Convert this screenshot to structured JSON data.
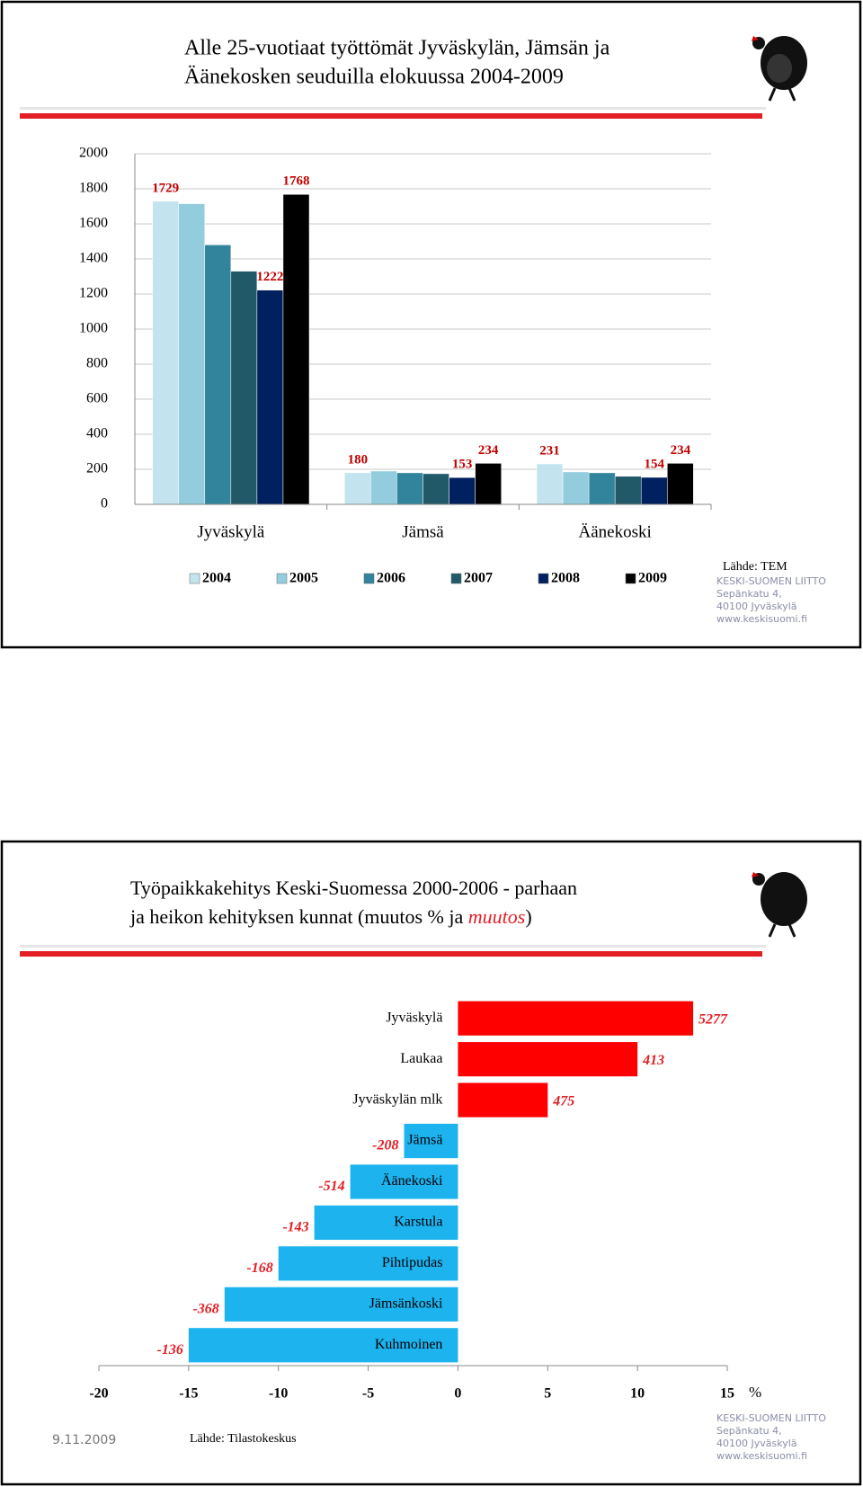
{
  "chart_data": [
    {
      "type": "bar",
      "title": [
        "Alle 25-vuotiaat työttömät Jyväskylän, Jämsän ja",
        "Äänekosken seuduilla elokuussa 2004-2009"
      ],
      "categories": [
        "Jyväskylä",
        "Jämsä",
        "Äänekoski"
      ],
      "series": [
        {
          "name": "2004",
          "color": "#c3e4ee",
          "values": [
            1729,
            180,
            231
          ],
          "value_labels": [
            "1729",
            "180",
            "231"
          ]
        },
        {
          "name": "2005",
          "color": "#93cddd",
          "values": [
            1715,
            190,
            185
          ],
          "value_labels": [
            null,
            null,
            null
          ]
        },
        {
          "name": "2006",
          "color": "#31849b",
          "values": [
            1480,
            180,
            180
          ],
          "value_labels": [
            null,
            null,
            null
          ]
        },
        {
          "name": "2007",
          "color": "#215968",
          "values": [
            1330,
            175,
            160
          ],
          "value_labels": [
            null,
            null,
            null
          ]
        },
        {
          "name": "2008",
          "color": "#002060",
          "values": [
            1222,
            153,
            154
          ],
          "value_labels": [
            "1222",
            "153",
            "154"
          ]
        },
        {
          "name": "2009",
          "color": "#000000",
          "values": [
            1768,
            234,
            234
          ],
          "value_labels": [
            "1768",
            "234",
            "234"
          ]
        }
      ],
      "ylim": [
        0,
        2000
      ],
      "yticks": [
        0,
        200,
        400,
        600,
        800,
        1000,
        1200,
        1400,
        1600,
        1800,
        2000
      ],
      "grid": true,
      "legend": "bottom"
    },
    {
      "type": "hbar",
      "title": [
        "Työpaikkakehitys Keski-Suomessa 2000-2006 - parhaan",
        "ja heikon kehityksen kunnat (muutos % ja "
      ],
      "title_emphasis": "muutos",
      "title_end": ")",
      "categories": [
        "Jyväskylä",
        "Laukaa",
        "Jyväskylän mlk",
        "Jämsä",
        "Äänekoski",
        "Karstula",
        "Pihtipudas",
        "Jämsänkoski",
        "Kuhmoinen"
      ],
      "values": [
        13.1,
        10.0,
        5.0,
        -3.0,
        -6.0,
        -8.0,
        -10.0,
        -13.0,
        -15.0
      ],
      "changes": [
        5277,
        413,
        475,
        -208,
        -514,
        -143,
        -168,
        -368,
        -136
      ],
      "color": "#ff0000",
      "negative_color": "#1cb3ef",
      "xlim": [
        -20,
        15
      ],
      "xticks": [
        -20,
        -15,
        -10,
        -5,
        0,
        5,
        10,
        15
      ],
      "xlabel": "%",
      "grid": false
    }
  ],
  "slides": [
    {
      "source": "Lähde: TEM",
      "address": [
        "KESKI-SUOMEN LIITTO",
        "Sepänkatu 4,",
        "40100 Jyväskylä",
        "www.keskisuomi.fi"
      ]
    },
    {
      "date": "9.11.2009",
      "source": "Lähde: Tilastokeskus",
      "address": [
        "KESKI-SUOMEN LIITTO",
        "Sepänkatu 4,",
        "40100 Jyväskylä",
        "www.keskisuomi.fi"
      ]
    }
  ]
}
